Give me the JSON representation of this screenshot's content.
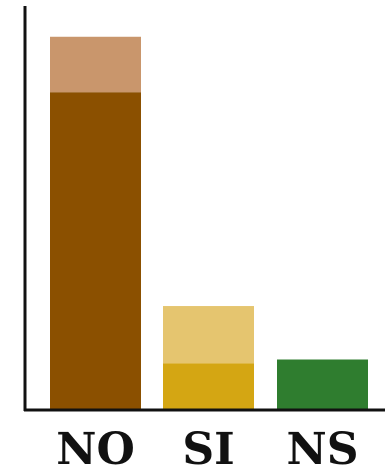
{
  "chart_data": {
    "type": "bar",
    "stacked": true,
    "categories": [
      "NO",
      "SI",
      "NS"
    ],
    "series": [
      {
        "values": [
          80,
          11.5,
          12.5
        ],
        "colors": [
          "#8b5000",
          "#d4a613",
          "#2f7d2f"
        ]
      },
      {
        "values": [
          14,
          14.5,
          0
        ],
        "colors": [
          "#c9966c",
          "#e5c56f",
          "#2f7d2f"
        ]
      }
    ],
    "ylim": [
      0,
      100
    ],
    "grid": false,
    "legend": "none"
  }
}
